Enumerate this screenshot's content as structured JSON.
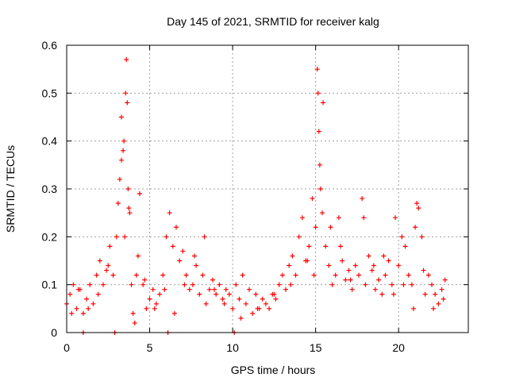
{
  "chart_data": {
    "type": "scatter",
    "title": "Day 145 of 2021, SRMTID for receiver kalg",
    "xlabel": "GPS time / hours",
    "ylabel": "SRMTID / TECUs",
    "xlim": [
      0,
      24.2
    ],
    "ylim": [
      0,
      0.6
    ],
    "x_ticks": [
      0,
      5,
      10,
      15,
      20
    ],
    "y_ticks": [
      0,
      0.1,
      0.2,
      0.3,
      0.4,
      0.5,
      0.6
    ],
    "x_tick_labels": [
      "0",
      "5",
      "10",
      "15",
      "20"
    ],
    "y_tick_labels": [
      "0",
      "0.1",
      "0.2",
      "0.3",
      "0.4",
      "0.5",
      "0.6"
    ],
    "grid": true,
    "marker": "plus",
    "color": "#ff0000",
    "series": [
      {
        "name": "SRMTID",
        "x": [
          0.0,
          0.2,
          0.4,
          0.6,
          0.8,
          1.0,
          1.2,
          1.4,
          1.6,
          1.8,
          2.0,
          2.2,
          2.4,
          2.6,
          2.8,
          3.0,
          3.1,
          3.2,
          3.3,
          3.4,
          3.5,
          3.55,
          3.6,
          3.65,
          3.7,
          3.8,
          3.9,
          4.0,
          4.1,
          4.2,
          4.4,
          4.6,
          4.8,
          5.0,
          5.2,
          5.4,
          5.6,
          5.8,
          6.0,
          6.2,
          6.4,
          6.6,
          6.8,
          7.0,
          7.2,
          7.4,
          7.6,
          7.8,
          8.0,
          8.2,
          8.4,
          8.6,
          8.8,
          9.0,
          9.2,
          9.4,
          9.6,
          9.8,
          10.0,
          10.2,
          10.4,
          10.6,
          10.8,
          11.0,
          11.2,
          11.4,
          11.6,
          11.8,
          12.0,
          12.2,
          12.4,
          12.6,
          12.8,
          13.0,
          13.2,
          13.4,
          13.6,
          13.8,
          14.0,
          14.2,
          14.4,
          14.6,
          14.8,
          15.0,
          15.1,
          15.15,
          15.2,
          15.25,
          15.3,
          15.4,
          15.6,
          15.8,
          16.0,
          16.2,
          16.4,
          16.6,
          16.8,
          17.0,
          17.2,
          17.4,
          17.6,
          17.8,
          18.0,
          18.2,
          18.4,
          18.6,
          18.8,
          19.0,
          19.2,
          19.4,
          19.6,
          19.8,
          20.0,
          20.2,
          20.4,
          20.6,
          20.8,
          21.0,
          21.1,
          21.2,
          21.4,
          21.6,
          21.8,
          22.0,
          22.2,
          22.4,
          22.6,
          22.8,
          1.0,
          2.9,
          6.1,
          10.1,
          0.3,
          0.7,
          1.3,
          1.9,
          2.5,
          3.3,
          3.45,
          3.75,
          4.3,
          4.7,
          5.3,
          5.9,
          6.5,
          7.1,
          7.7,
          8.3,
          8.9,
          9.5,
          10.5,
          11.5,
          12.5,
          13.5,
          14.5,
          14.9,
          15.45,
          15.9,
          16.5,
          17.1,
          17.9,
          18.5,
          19.1,
          19.7,
          20.3,
          20.9,
          21.5,
          22.1,
          22.7
        ],
        "y": [
          0.06,
          0.08,
          0.1,
          0.05,
          0.09,
          0.04,
          0.07,
          0.1,
          0.06,
          0.12,
          0.15,
          0.1,
          0.13,
          0.18,
          0.12,
          0.2,
          0.27,
          0.32,
          0.45,
          0.38,
          0.2,
          0.5,
          0.57,
          0.48,
          0.3,
          0.25,
          0.1,
          0.04,
          0.02,
          0.12,
          0.29,
          0.1,
          0.05,
          0.07,
          0.09,
          0.06,
          0.08,
          0.12,
          0.2,
          0.25,
          0.18,
          0.22,
          0.15,
          0.17,
          0.12,
          0.09,
          0.1,
          0.14,
          0.08,
          0.12,
          0.06,
          0.09,
          0.11,
          0.08,
          0.1,
          0.07,
          0.09,
          0.08,
          0.05,
          0.1,
          0.07,
          0.12,
          0.06,
          0.09,
          0.04,
          0.08,
          0.05,
          0.07,
          0.06,
          0.05,
          0.08,
          0.07,
          0.1,
          0.12,
          0.09,
          0.14,
          0.16,
          0.12,
          0.2,
          0.24,
          0.15,
          0.18,
          0.28,
          0.22,
          0.55,
          0.5,
          0.42,
          0.35,
          0.3,
          0.25,
          0.18,
          0.14,
          0.1,
          0.12,
          0.24,
          0.15,
          0.11,
          0.13,
          0.09,
          0.14,
          0.12,
          0.28,
          0.1,
          0.16,
          0.13,
          0.09,
          0.11,
          0.08,
          0.12,
          0.15,
          0.1,
          0.24,
          0.14,
          0.2,
          0.18,
          0.12,
          0.1,
          0.22,
          0.27,
          0.26,
          0.2,
          0.08,
          0.12,
          0.1,
          0.08,
          0.06,
          0.09,
          0.11,
          0.0,
          0.0,
          0.0,
          0.0,
          0.04,
          0.09,
          0.05,
          0.08,
          0.14,
          0.36,
          0.4,
          0.26,
          0.16,
          0.11,
          0.05,
          0.09,
          0.04,
          0.1,
          0.16,
          0.2,
          0.09,
          0.06,
          0.03,
          0.05,
          0.08,
          0.1,
          0.15,
          0.12,
          0.48,
          0.22,
          0.18,
          0.11,
          0.24,
          0.14,
          0.16,
          0.08,
          0.1,
          0.05,
          0.13,
          0.05,
          0.07
        ]
      }
    ]
  }
}
